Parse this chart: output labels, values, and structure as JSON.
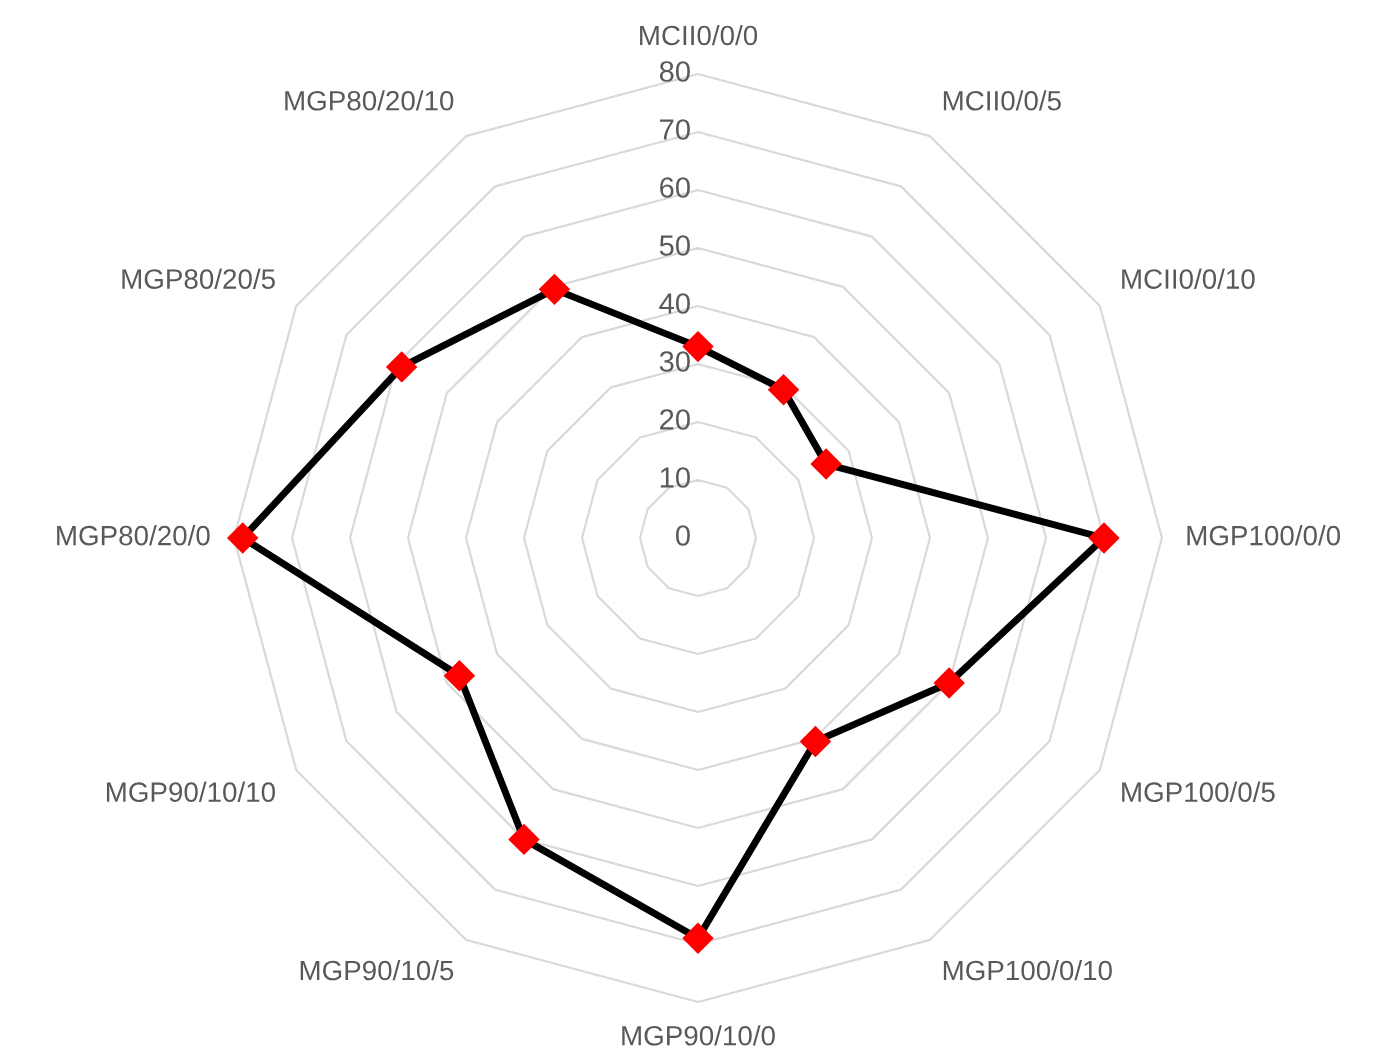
{
  "chart_data": {
    "type": "radar",
    "categories": [
      "MCII0/0/0",
      "MCII0/0/5",
      "MCII0/0/10",
      "MGP100/0/0",
      "MGP100/0/5",
      "MGP100/0/10",
      "MGP90/10/0",
      "MGP90/10/5",
      "MGP90/10/10",
      "MGP80/20/0",
      "MGP80/20/5",
      "MGP80/20/10"
    ],
    "series": [
      {
        "color": "#000000",
        "colors": [
          "#ff0000",
          "#ff0000",
          "#ff0000",
          "#ff0000",
          "#ff0000",
          "#ff0000",
          "#ff0000",
          "#ff0000",
          "#ff0000",
          "#ff0000",
          "#ff0000",
          "#ff0000"
        ],
        "values": [
          33,
          29.5,
          25.5,
          70,
          50,
          40.5,
          69,
          60,
          47.5,
          78.5,
          59,
          49.5
        ]
      }
    ],
    "ylim": [
      0,
      80
    ],
    "yticks": [
      0,
      10,
      20,
      30,
      40,
      50,
      60,
      70,
      80
    ],
    "marker": "diamond",
    "line_style": "solid",
    "grid": true,
    "legend": false
  }
}
